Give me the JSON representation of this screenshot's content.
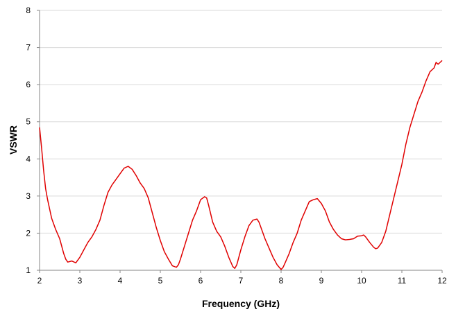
{
  "chart_data": {
    "type": "line",
    "title": "",
    "xlabel": "Frequency (GHz)",
    "ylabel": "VSWR",
    "xlim": [
      2,
      12
    ],
    "ylim": [
      1,
      8
    ],
    "x_ticks": [
      "2",
      "3",
      "4",
      "5",
      "6",
      "7",
      "8",
      "9",
      "10",
      "11",
      "12"
    ],
    "y_ticks": [
      "1",
      "2",
      "3",
      "4",
      "5",
      "6",
      "7",
      "8"
    ],
    "grid": "horizontal",
    "legend": "none",
    "series": [
      {
        "color": "#e00000",
        "x": [
          2.0,
          2.05,
          2.1,
          2.15,
          2.2,
          2.3,
          2.4,
          2.5,
          2.6,
          2.65,
          2.7,
          2.8,
          2.9,
          3.0,
          3.1,
          3.2,
          3.3,
          3.4,
          3.5,
          3.6,
          3.7,
          3.8,
          3.9,
          4.0,
          4.1,
          4.2,
          4.3,
          4.4,
          4.5,
          4.6,
          4.7,
          4.8,
          4.9,
          5.0,
          5.1,
          5.2,
          5.3,
          5.4,
          5.45,
          5.5,
          5.6,
          5.7,
          5.8,
          5.9,
          6.0,
          6.1,
          6.15,
          6.2,
          6.3,
          6.4,
          6.5,
          6.6,
          6.7,
          6.8,
          6.85,
          6.9,
          7.0,
          7.1,
          7.2,
          7.3,
          7.4,
          7.45,
          7.5,
          7.6,
          7.7,
          7.8,
          7.9,
          8.0,
          8.05,
          8.1,
          8.2,
          8.3,
          8.4,
          8.5,
          8.6,
          8.7,
          8.8,
          8.9,
          9.0,
          9.1,
          9.2,
          9.3,
          9.4,
          9.5,
          9.6,
          9.7,
          9.8,
          9.9,
          10.0,
          10.05,
          10.1,
          10.2,
          10.3,
          10.35,
          10.4,
          10.5,
          10.6,
          10.7,
          10.8,
          10.9,
          11.0,
          11.1,
          11.2,
          11.3,
          11.4,
          11.5,
          11.6,
          11.7,
          11.8,
          11.85,
          11.9,
          11.95,
          12.0
        ],
        "y": [
          4.85,
          4.3,
          3.7,
          3.2,
          2.9,
          2.4,
          2.1,
          1.85,
          1.45,
          1.3,
          1.22,
          1.25,
          1.2,
          1.35,
          1.55,
          1.75,
          1.9,
          2.1,
          2.35,
          2.75,
          3.1,
          3.3,
          3.45,
          3.6,
          3.75,
          3.8,
          3.72,
          3.55,
          3.35,
          3.2,
          2.95,
          2.55,
          2.15,
          1.8,
          1.5,
          1.3,
          1.12,
          1.08,
          1.15,
          1.3,
          1.65,
          2.0,
          2.35,
          2.6,
          2.9,
          2.98,
          2.95,
          2.75,
          2.3,
          2.05,
          1.9,
          1.65,
          1.35,
          1.1,
          1.05,
          1.15,
          1.55,
          1.9,
          2.2,
          2.35,
          2.38,
          2.3,
          2.15,
          1.85,
          1.6,
          1.35,
          1.15,
          1.02,
          1.08,
          1.2,
          1.45,
          1.75,
          2.0,
          2.35,
          2.6,
          2.85,
          2.9,
          2.93,
          2.8,
          2.6,
          2.3,
          2.1,
          1.95,
          1.85,
          1.82,
          1.83,
          1.85,
          1.92,
          1.93,
          1.95,
          1.9,
          1.75,
          1.62,
          1.58,
          1.6,
          1.75,
          2.05,
          2.5,
          2.95,
          3.4,
          3.85,
          4.4,
          4.85,
          5.2,
          5.55,
          5.8,
          6.1,
          6.35,
          6.45,
          6.6,
          6.55,
          6.6,
          6.65
        ]
      }
    ]
  }
}
